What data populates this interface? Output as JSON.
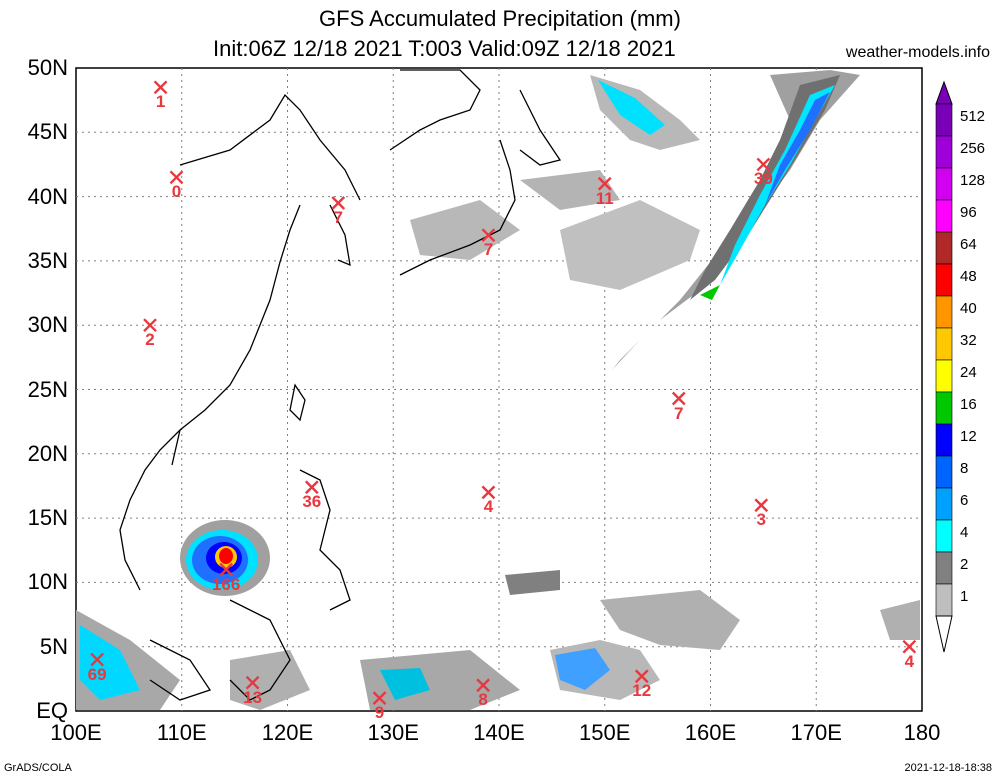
{
  "title": {
    "line1": "GFS Accumulated Precipitation (mm)",
    "line2": "Init:06Z 12/18 2021 T:003 Valid:09Z 12/18 2021"
  },
  "site": "weather-models.info",
  "footer": {
    "left": "GrADS/COLA",
    "right": "2021-12-18-18:38"
  },
  "lat_labels": [
    "50N",
    "45N",
    "40N",
    "35N",
    "30N",
    "25N",
    "20N",
    "15N",
    "10N",
    "5N",
    "EQ"
  ],
  "lon_labels": [
    "100E",
    "110E",
    "120E",
    "130E",
    "140E",
    "150E",
    "160E",
    "170E",
    "180"
  ],
  "colorbar": {
    "labels": [
      "512",
      "256",
      "128",
      "96",
      "64",
      "48",
      "40",
      "32",
      "24",
      "16",
      "12",
      "8",
      "6",
      "4",
      "2",
      "1"
    ],
    "colors": [
      "#7a00b8",
      "#a000d8",
      "#d200f0",
      "#ff00ff",
      "#b02828",
      "#ff0000",
      "#ff9600",
      "#ffc800",
      "#ffff00",
      "#00c800",
      "#0000ff",
      "#0064ff",
      "#00a0ff",
      "#00ffff",
      "#808080",
      "#bebebe"
    ]
  },
  "markers": [
    {
      "value": "1",
      "lon": 108,
      "lat": 48.5
    },
    {
      "value": "0",
      "lon": 109.5,
      "lat": 41.5
    },
    {
      "value": "7",
      "lon": 124.8,
      "lat": 39.5
    },
    {
      "value": "11",
      "lon": 150,
      "lat": 41
    },
    {
      "value": "39",
      "lon": 165,
      "lat": 42.5
    },
    {
      "value": "7",
      "lon": 139,
      "lat": 37
    },
    {
      "value": "2",
      "lon": 107,
      "lat": 30
    },
    {
      "value": "7",
      "lon": 157,
      "lat": 24.3
    },
    {
      "value": "36",
      "lon": 122.3,
      "lat": 17.4
    },
    {
      "value": "4",
      "lon": 139,
      "lat": 17
    },
    {
      "value": "3",
      "lon": 164.8,
      "lat": 16
    },
    {
      "value": "166",
      "lon": 114.2,
      "lat": 11
    },
    {
      "value": "69",
      "lon": 102,
      "lat": 4
    },
    {
      "value": "4",
      "lon": 178.8,
      "lat": 5
    },
    {
      "value": "13",
      "lon": 116.7,
      "lat": 2.2
    },
    {
      "value": "12",
      "lon": 153.5,
      "lat": 2.7
    },
    {
      "value": "8",
      "lon": 138.5,
      "lat": 2
    },
    {
      "value": "9",
      "lon": 128.7,
      "lat": 1
    }
  ]
}
